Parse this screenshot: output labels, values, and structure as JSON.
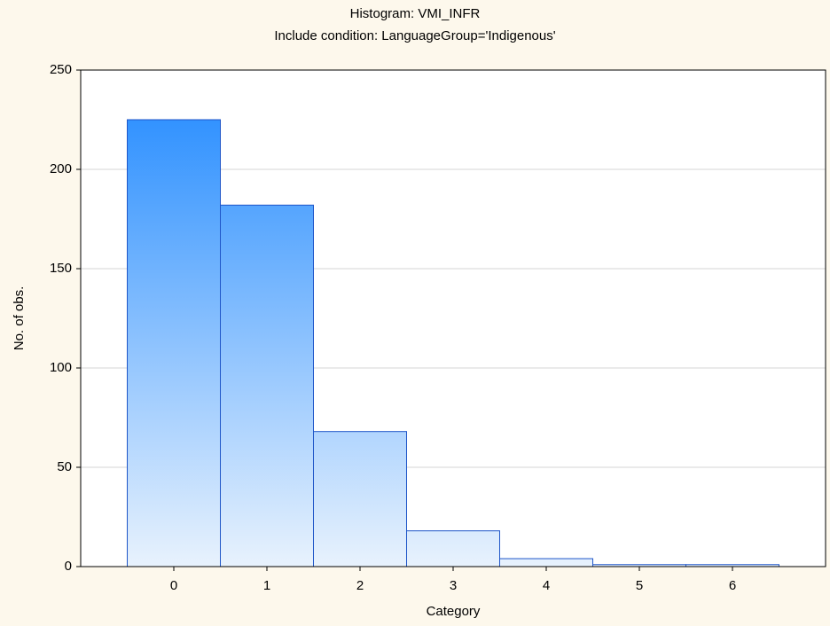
{
  "chart_data": {
    "type": "bar",
    "title": "Histogram: VMI_INFR",
    "subtitle": "Include condition: LanguageGroup='Indigenous'",
    "x_label": "Category",
    "y_label": "No. of obs.",
    "categories": [
      "0",
      "1",
      "2",
      "3",
      "4",
      "5",
      "6"
    ],
    "values": [
      225,
      182,
      68,
      18,
      4,
      1,
      1
    ],
    "color": "#1e88ff",
    "ylim": [
      0,
      250
    ],
    "yticks": [
      0,
      50,
      100,
      150,
      200,
      250
    ],
    "grid": true
  }
}
